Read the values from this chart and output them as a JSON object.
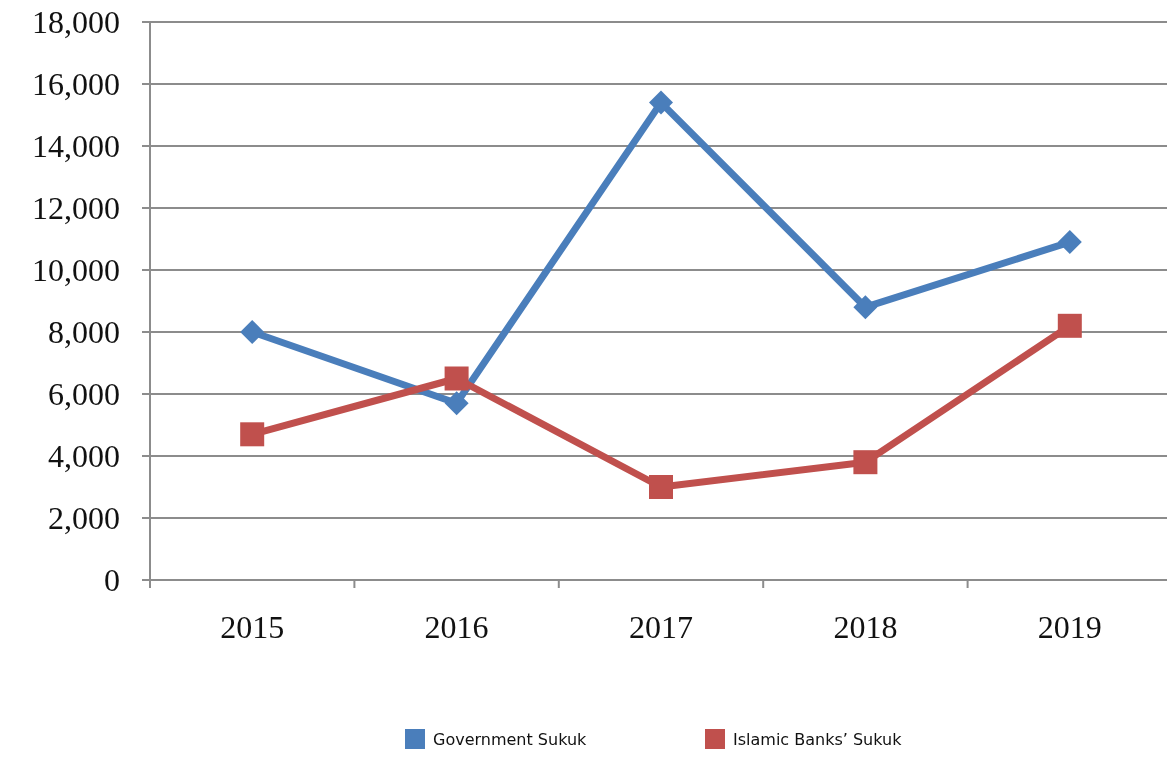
{
  "chart_data": {
    "type": "line",
    "categories": [
      "2015",
      "2016",
      "2017",
      "2018",
      "2019"
    ],
    "series": [
      {
        "name": "Government Sukuk",
        "color": "#4a7ebb",
        "marker": "diamond",
        "values": [
          8000,
          5700,
          15400,
          8800,
          10900
        ]
      },
      {
        "name": "Islamic Banks’ Sukuk",
        "color": "#c0504d",
        "marker": "square",
        "values": [
          4700,
          6500,
          3000,
          3800,
          8200
        ]
      }
    ],
    "ylim": [
      0,
      18000
    ],
    "yticks": [
      {
        "value": 0,
        "label": "0"
      },
      {
        "value": 2000,
        "label": "2,000"
      },
      {
        "value": 4000,
        "label": "4,000"
      },
      {
        "value": 6000,
        "label": "6,000"
      },
      {
        "value": 8000,
        "label": "8,000"
      },
      {
        "value": 10000,
        "label": "10,000"
      },
      {
        "value": 12000,
        "label": "12,000"
      },
      {
        "value": 14000,
        "label": "14,000"
      },
      {
        "value": 16000,
        "label": "16,000"
      },
      {
        "value": 18000,
        "label": "18,000"
      }
    ],
    "grid": "y",
    "legend": "bottom",
    "line_style": "solid"
  }
}
